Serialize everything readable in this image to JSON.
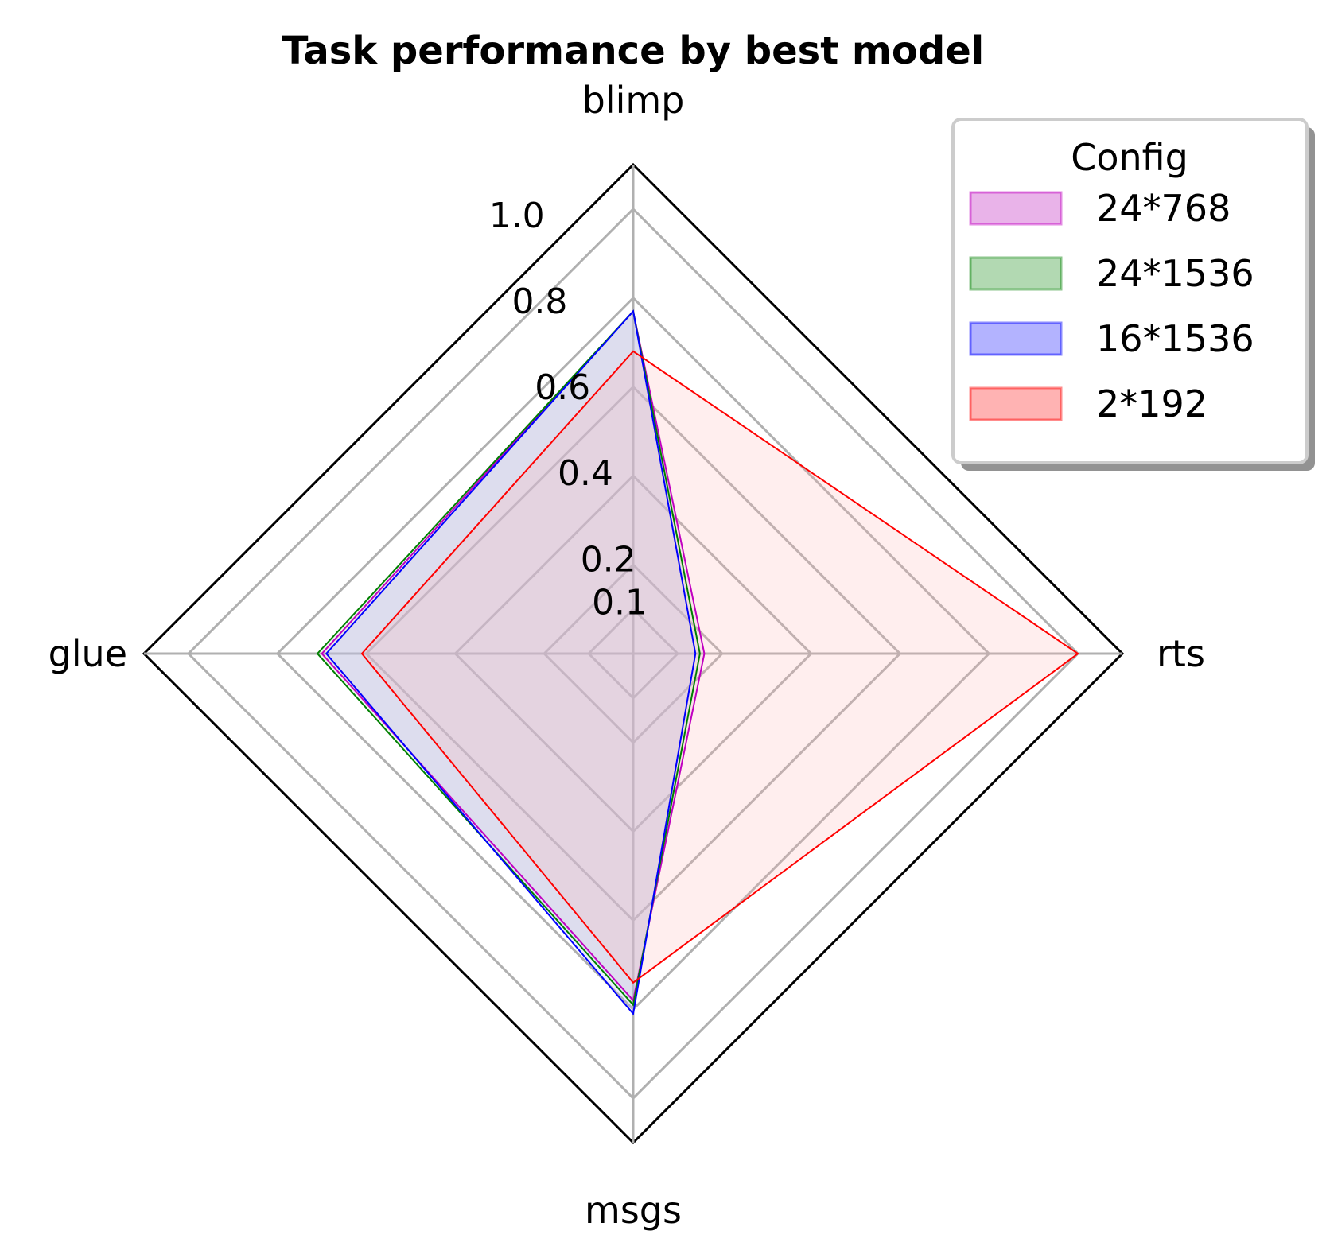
{
  "chart_data": {
    "type": "radar",
    "title": "Task performance by best model",
    "axes": [
      "blimp",
      "rts",
      "msgs",
      "glue"
    ],
    "radial_ticks": [
      0.1,
      0.2,
      0.4,
      0.6,
      0.8,
      1.0
    ],
    "radial_tick_labels": [
      "0.1",
      "0.2",
      "0.4",
      "0.6",
      "0.8",
      "1.0"
    ],
    "rlim": [
      0,
      1.1
    ],
    "grid": true,
    "legend": {
      "title": "Config",
      "placement": "top-right"
    },
    "series": [
      {
        "name": "24*768",
        "values": [
          0.77,
          0.16,
          0.78,
          0.7
        ],
        "color": "#c000c0",
        "fill": "#e9b3e9"
      },
      {
        "name": "24*1536",
        "values": [
          0.77,
          0.15,
          0.79,
          0.71
        ],
        "color": "#008000",
        "fill": "#b2d9b2"
      },
      {
        "name": "16*1536",
        "values": [
          0.77,
          0.14,
          0.81,
          0.69
        ],
        "color": "#0000ff",
        "fill": "#b3b3ff"
      },
      {
        "name": "2*192",
        "values": [
          0.68,
          1.0,
          0.74,
          0.61
        ],
        "color": "#ff0000",
        "fill": "#ffb3b3"
      }
    ]
  }
}
